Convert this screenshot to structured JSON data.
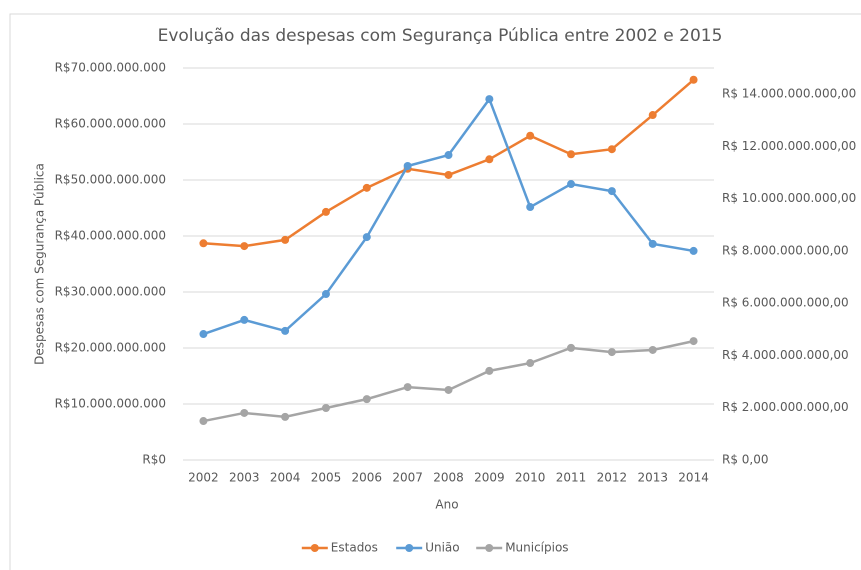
{
  "chart_data": {
    "type": "line",
    "title": "Evolução das despesas com Segurança Pública entre 2002 e 2015",
    "xlabel": "Ano",
    "ylabel": "Despesas com Segurança Pública",
    "categories": [
      "2002",
      "2003",
      "2004",
      "2005",
      "2006",
      "2007",
      "2008",
      "2009",
      "2010",
      "2011",
      "2012",
      "2013",
      "2014"
    ],
    "series": [
      {
        "name": "Estados",
        "color": "#ED7D31",
        "values": [
          38700000000,
          38200000000,
          39300000000,
          44300000000,
          48600000000,
          52000000000,
          50900000000,
          53700000000,
          57900000000,
          54600000000,
          55500000000,
          61600000000,
          67900000000
        ]
      },
      {
        "name": "União",
        "color": "#5B9BD5",
        "axis": "y2",
        "values": [
          4820000000,
          5360000000,
          4940000000,
          6350000000,
          8530000000,
          11250000000,
          11670000000,
          13810000000,
          9680000000,
          10560000000,
          10290000000,
          8270000000,
          8000000000
        ]
      },
      {
        "name": "Municípios",
        "color": "#A5A5A5",
        "axis": "y2",
        "values": [
          1490000000,
          1800000000,
          1650000000,
          1990000000,
          2330000000,
          2790000000,
          2680000000,
          3410000000,
          3710000000,
          4290000000,
          4130000000,
          4210000000,
          4550000000
        ]
      }
    ],
    "ylim": [
      0,
      70000000000
    ],
    "yticks": [
      {
        "value": 0,
        "label": "R$0"
      },
      {
        "value": 10000000000,
        "label": "R$10.000.000.000"
      },
      {
        "value": 20000000000,
        "label": "R$20.000.000.000"
      },
      {
        "value": 30000000000,
        "label": "R$30.000.000.000"
      },
      {
        "value": 40000000000,
        "label": "R$40.000.000.000"
      },
      {
        "value": 50000000000,
        "label": "R$50.000.000.000"
      },
      {
        "value": 60000000000,
        "label": "R$60.000.000.000"
      },
      {
        "value": 70000000000,
        "label": "R$70.000.000.000"
      }
    ],
    "y2lim": [
      0,
      15000000000
    ],
    "y2ticks": [
      {
        "value": 0,
        "label": "R$ 0,00"
      },
      {
        "value": 2000000000,
        "label": "R$ 2.000.000.000,00"
      },
      {
        "value": 4000000000,
        "label": "R$ 4.000.000.000,00"
      },
      {
        "value": 6000000000,
        "label": "R$ 6.000.000.000,00"
      },
      {
        "value": 8000000000,
        "label": "R$ 8.000.000.000,00"
      },
      {
        "value": 10000000000,
        "label": "R$ 10.000.000.000,00"
      },
      {
        "value": 12000000000,
        "label": "R$ 12.000.000.000,00"
      },
      {
        "value": 14000000000,
        "label": "R$ 14.000.000.000,00"
      }
    ],
    "grid": true,
    "legend": "bottom"
  }
}
